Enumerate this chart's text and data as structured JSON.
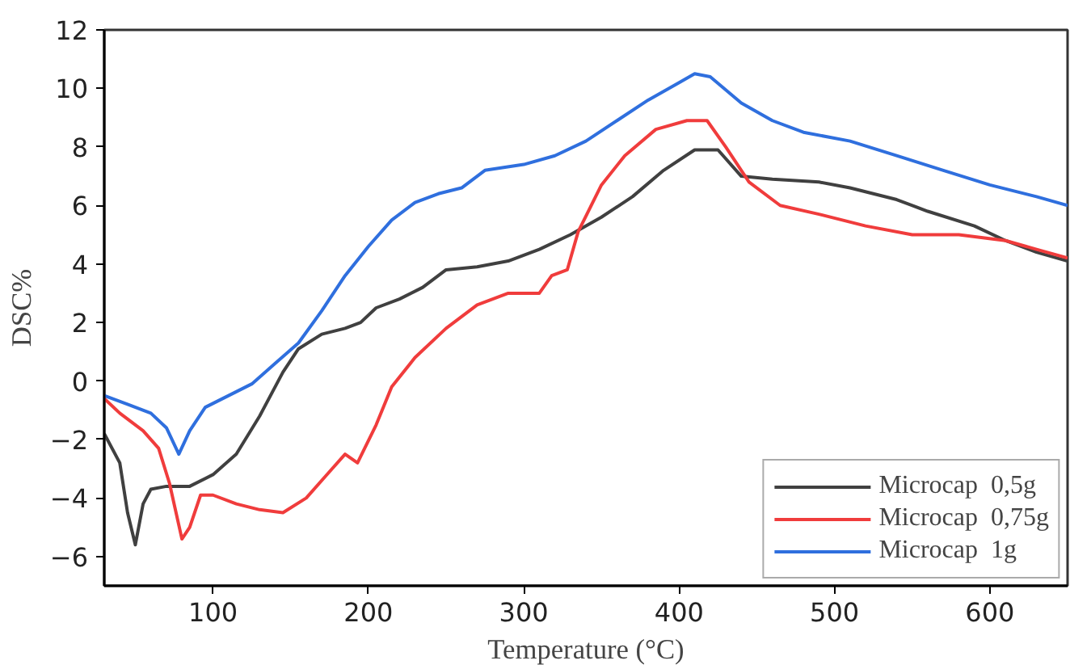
{
  "chart_data": {
    "type": "line",
    "xlabel": "Temperature (°C)",
    "ylabel": "DSC%",
    "xlim": [
      30,
      650
    ],
    "ylim": [
      -7,
      12
    ],
    "xticks": [
      100,
      200,
      300,
      400,
      500,
      600
    ],
    "yticks": [
      -6,
      -4,
      -2,
      0,
      2,
      4,
      6,
      8,
      10,
      12
    ],
    "grid": false,
    "legend": "bottom right",
    "marker": "none",
    "line_style": "solid",
    "series": [
      {
        "name": "Microcap  0,5g",
        "color": "#404040",
        "x": [
          30,
          40,
          45,
          50,
          55,
          60,
          70,
          85,
          100,
          115,
          130,
          145,
          155,
          170,
          185,
          195,
          205,
          220,
          235,
          250,
          270,
          290,
          310,
          330,
          350,
          370,
          390,
          410,
          425,
          440,
          460,
          490,
          510,
          540,
          560,
          590,
          610,
          630,
          650
        ],
        "values": [
          -1.8,
          -2.8,
          -4.5,
          -5.6,
          -4.2,
          -3.7,
          -3.6,
          -3.6,
          -3.2,
          -2.5,
          -1.2,
          0.3,
          1.1,
          1.6,
          1.8,
          2.0,
          2.5,
          2.8,
          3.2,
          3.8,
          3.9,
          4.1,
          4.5,
          5.0,
          5.6,
          6.3,
          7.2,
          7.9,
          7.9,
          7.0,
          6.9,
          6.8,
          6.6,
          6.2,
          5.8,
          5.3,
          4.8,
          4.4,
          4.1
        ]
      },
      {
        "name": "Microcap  0,75g",
        "color": "#f03c3c",
        "x": [
          30,
          40,
          55,
          65,
          72,
          80,
          85,
          92,
          100,
          115,
          130,
          145,
          160,
          175,
          185,
          193,
          205,
          215,
          230,
          250,
          270,
          290,
          310,
          318,
          328,
          335,
          350,
          365,
          385,
          405,
          418,
          430,
          445,
          465,
          490,
          520,
          550,
          580,
          610,
          630,
          650
        ],
        "values": [
          -0.6,
          -1.1,
          -1.7,
          -2.3,
          -3.5,
          -5.4,
          -5.0,
          -3.9,
          -3.9,
          -4.2,
          -4.4,
          -4.5,
          -4.0,
          -3.1,
          -2.5,
          -2.8,
          -1.5,
          -0.2,
          0.8,
          1.8,
          2.6,
          3.0,
          3.0,
          3.6,
          3.8,
          5.1,
          6.7,
          7.7,
          8.6,
          8.9,
          8.9,
          8.0,
          6.8,
          6.0,
          5.7,
          5.3,
          5.0,
          5.0,
          4.8,
          4.5,
          4.2
        ]
      },
      {
        "name": "Microcap  1g",
        "color": "#2f6fde",
        "x": [
          30,
          45,
          60,
          70,
          78,
          85,
          95,
          110,
          125,
          140,
          155,
          170,
          185,
          200,
          215,
          230,
          245,
          260,
          275,
          300,
          320,
          340,
          360,
          380,
          400,
          410,
          420,
          440,
          460,
          480,
          510,
          540,
          570,
          600,
          630,
          650
        ],
        "values": [
          -0.5,
          -0.8,
          -1.1,
          -1.6,
          -2.5,
          -1.7,
          -0.9,
          -0.5,
          -0.1,
          0.6,
          1.3,
          2.4,
          3.6,
          4.6,
          5.5,
          6.1,
          6.4,
          6.6,
          7.2,
          7.4,
          7.7,
          8.2,
          8.9,
          9.6,
          10.2,
          10.5,
          10.4,
          9.5,
          8.9,
          8.5,
          8.2,
          7.7,
          7.2,
          6.7,
          6.3,
          6.0
        ]
      }
    ]
  }
}
